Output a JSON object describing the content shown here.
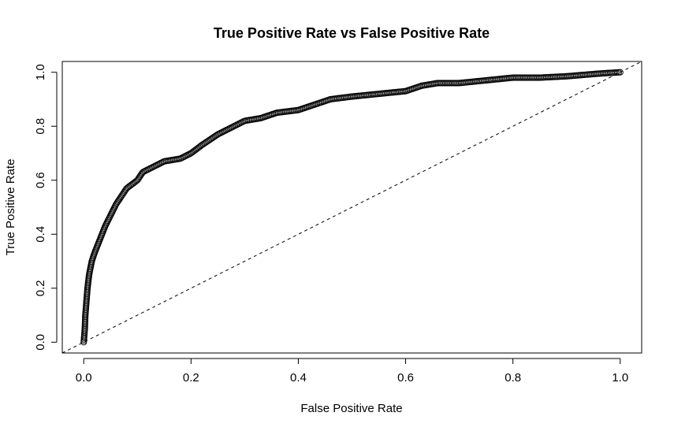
{
  "chart_data": {
    "type": "scatter",
    "title": "True Positive Rate vs False Positive Rate",
    "xlabel": "False Positive Rate",
    "ylabel": "True Positive Rate",
    "xlim": [
      -0.04,
      1.04
    ],
    "ylim": [
      -0.04,
      1.04
    ],
    "x_ticks": [
      0.0,
      0.2,
      0.4,
      0.6,
      0.8,
      1.0
    ],
    "y_ticks": [
      0.0,
      0.2,
      0.4,
      0.6,
      0.8,
      1.0
    ],
    "x_tick_labels": [
      "0.0",
      "0.2",
      "0.4",
      "0.6",
      "0.8",
      "1.0"
    ],
    "y_tick_labels": [
      "0.0",
      "0.2",
      "0.4",
      "0.6",
      "0.8",
      "1.0"
    ],
    "grid": false,
    "marker": "open-circle",
    "reference_line": {
      "style": "dashed",
      "intercept": 0,
      "slope": 1
    },
    "series": [
      {
        "name": "ROC",
        "anchors_x": [
          0.0,
          0.002,
          0.003,
          0.005,
          0.007,
          0.01,
          0.015,
          0.02,
          0.03,
          0.04,
          0.05,
          0.06,
          0.07,
          0.08,
          0.1,
          0.11,
          0.13,
          0.15,
          0.18,
          0.2,
          0.22,
          0.25,
          0.28,
          0.3,
          0.33,
          0.36,
          0.4,
          0.43,
          0.46,
          0.5,
          0.55,
          0.6,
          0.63,
          0.66,
          0.7,
          0.75,
          0.8,
          0.85,
          0.9,
          0.93,
          0.96,
          1.0
        ],
        "anchors_y": [
          0.0,
          0.05,
          0.1,
          0.15,
          0.2,
          0.25,
          0.3,
          0.33,
          0.38,
          0.43,
          0.47,
          0.51,
          0.54,
          0.57,
          0.6,
          0.63,
          0.65,
          0.67,
          0.68,
          0.7,
          0.73,
          0.77,
          0.8,
          0.82,
          0.83,
          0.85,
          0.86,
          0.88,
          0.9,
          0.91,
          0.92,
          0.93,
          0.95,
          0.96,
          0.96,
          0.97,
          0.98,
          0.98,
          0.985,
          0.99,
          0.995,
          1.0
        ],
        "point_count": 480
      }
    ]
  }
}
